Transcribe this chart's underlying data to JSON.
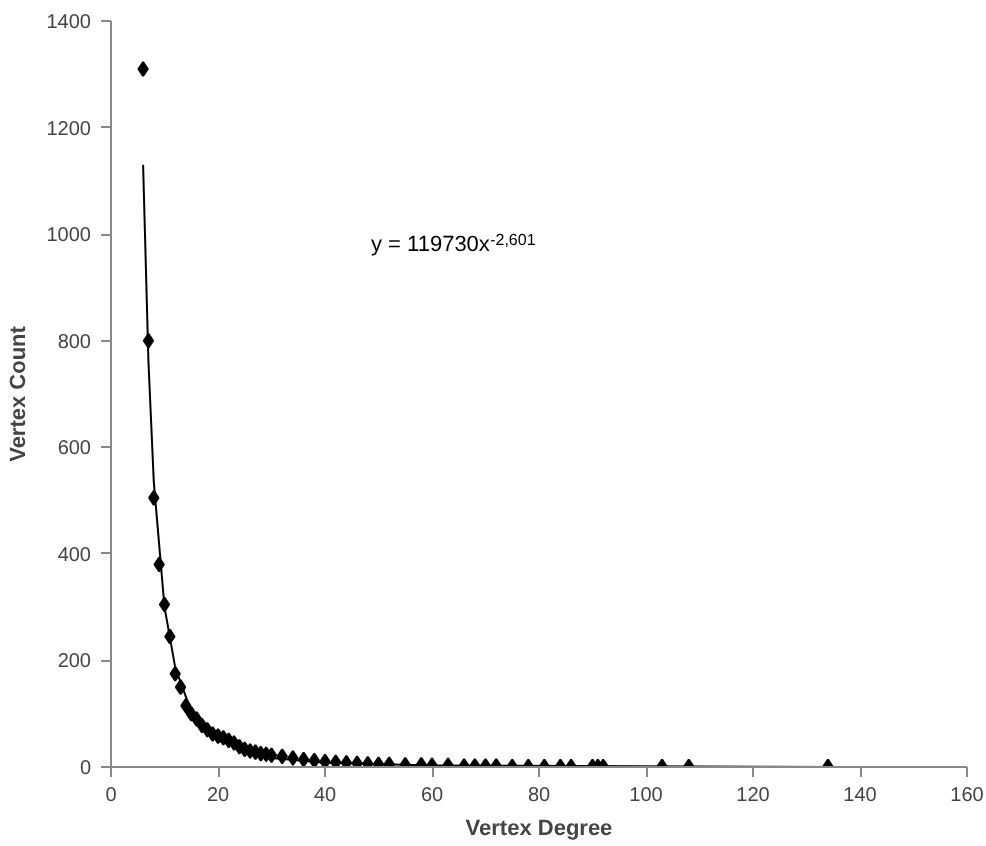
{
  "chart_data": {
    "type": "scatter",
    "xlabel": "Vertex Degree",
    "ylabel": "Vertex Count",
    "xlim": [
      0,
      160
    ],
    "xticks": [
      0,
      20,
      40,
      60,
      80,
      100,
      120,
      140,
      160
    ],
    "ylim": [
      0,
      1400
    ],
    "yticks": [
      0,
      200,
      400,
      600,
      800,
      1000,
      1200,
      1400
    ],
    "grid": false,
    "annotations": [
      "y = 119730x$^{-2,601}$"
    ],
    "series": [
      {
        "color": "#000000",
        "marker": "diamond",
        "x": [
          6,
          7,
          8,
          9,
          10,
          11,
          12,
          13,
          14,
          15,
          16,
          17,
          18,
          19,
          20,
          21,
          22,
          23,
          24,
          25,
          26,
          27,
          28,
          29,
          30,
          32,
          34,
          36,
          38,
          40,
          42,
          44,
          46,
          48,
          50,
          52,
          55,
          58,
          60,
          63,
          66,
          68,
          70,
          72,
          75,
          78,
          81,
          84,
          86,
          90,
          91,
          92,
          103,
          108,
          134
        ],
        "values": [
          1310,
          800,
          505,
          380,
          305,
          245,
          175,
          150,
          115,
          100,
          90,
          78,
          70,
          62,
          58,
          55,
          50,
          45,
          38,
          33,
          30,
          28,
          25,
          24,
          22,
          20,
          17,
          14,
          12,
          10,
          9,
          8,
          7,
          6,
          5,
          5,
          4,
          4,
          3,
          3,
          2,
          2,
          2,
          2,
          1,
          1,
          1,
          1,
          1,
          1,
          1,
          1,
          1,
          1,
          1
        ]
      },
      {
        "type": "line",
        "color": "#000000",
        "line_style": "solid",
        "x": [
          6,
          7,
          8,
          10,
          12,
          15,
          20,
          30,
          40,
          60,
          134
        ],
        "values": [
          1130,
          760,
          535,
          300,
          187,
          104,
          49,
          17,
          8,
          3,
          0
        ]
      }
    ]
  }
}
